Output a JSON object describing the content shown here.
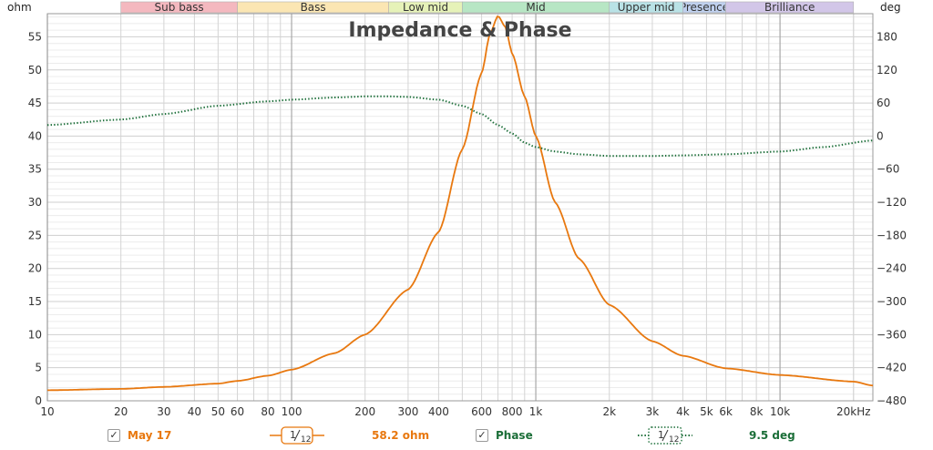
{
  "chart_data": {
    "type": "line",
    "title": "Impedance & Phase",
    "xlabel": "",
    "x_scale": "log",
    "xlim": [
      10,
      24000
    ],
    "x_ticks": [
      10,
      20,
      30,
      40,
      50,
      60,
      80,
      100,
      200,
      300,
      400,
      600,
      800,
      1000,
      2000,
      3000,
      4000,
      5000,
      6000,
      8000,
      10000,
      20000
    ],
    "x_tick_labels": [
      "10",
      "20",
      "30",
      "40",
      "50",
      "60",
      "80",
      "100",
      "200",
      "300",
      "400",
      "600",
      "800",
      "1k",
      "2k",
      "3k",
      "4k",
      "5k",
      "6k",
      "8k",
      "10k",
      "20kHz"
    ],
    "left_axis": {
      "label": "ohm",
      "ylim": [
        0,
        58.5
      ],
      "ticks": [
        0,
        5,
        10,
        15,
        20,
        25,
        30,
        35,
        40,
        45,
        50,
        55
      ],
      "tick_labels": [
        "0",
        "5",
        "10",
        "15",
        "20",
        "25",
        "30",
        "35",
        "40",
        "45",
        "50",
        "55"
      ]
    },
    "right_axis": {
      "label": "deg",
      "ylim": [
        -480,
        222
      ],
      "ticks": [
        180,
        120,
        60,
        0,
        -60,
        -120,
        -180,
        -240,
        -300,
        -360,
        -420,
        -480
      ],
      "tick_labels": [
        "180",
        "120",
        "60",
        "0",
        "-60",
        "-120",
        "-180",
        "-240",
        "-300",
        "-360",
        "-420",
        "-480"
      ]
    },
    "grid": true,
    "bands": [
      {
        "name": "Sub bass",
        "from": 20,
        "to": 60,
        "color": "#f4b8bf"
      },
      {
        "name": "Bass",
        "from": 60,
        "to": 250,
        "color": "#fbe6b3"
      },
      {
        "name": "Low mid",
        "from": 250,
        "to": 500,
        "color": "#e6f2b8"
      },
      {
        "name": "Mid",
        "from": 500,
        "to": 2000,
        "color": "#b7e6c4"
      },
      {
        "name": "Upper mid",
        "from": 2000,
        "to": 4000,
        "color": "#b9e2e6"
      },
      {
        "name": "Presence",
        "from": 4000,
        "to": 6000,
        "color": "#bfd0ee"
      },
      {
        "name": "Brilliance",
        "from": 6000,
        "to": 20000,
        "color": "#d2c6e8"
      }
    ],
    "series": [
      {
        "name": "May 17",
        "axis": "left",
        "color": "#e8780f",
        "style": "solid",
        "x": [
          10,
          20,
          30,
          50,
          60,
          80,
          100,
          150,
          200,
          300,
          400,
          500,
          600,
          650,
          700,
          750,
          800,
          900,
          1000,
          1200,
          1500,
          2000,
          3000,
          4000,
          6000,
          10000,
          20000,
          24000
        ],
        "values": [
          1.6,
          1.8,
          2.1,
          2.6,
          3.0,
          3.8,
          4.7,
          7.2,
          10.0,
          16.8,
          25.5,
          38.0,
          49.5,
          55.5,
          58.2,
          56.5,
          52.5,
          46.0,
          40.0,
          30.0,
          21.5,
          14.5,
          9.0,
          6.8,
          4.9,
          3.9,
          2.9,
          2.3
        ]
      },
      {
        "name": "Phase",
        "axis": "right",
        "color": "#1b6e38",
        "style": "dotted",
        "x": [
          10,
          20,
          30,
          50,
          80,
          100,
          150,
          200,
          250,
          300,
          400,
          500,
          600,
          700,
          800,
          900,
          1000,
          1200,
          1500,
          2000,
          3000,
          4000,
          6000,
          10000,
          15000,
          24000
        ],
        "values": [
          20,
          30,
          40,
          55,
          63,
          66,
          70,
          72,
          72,
          71,
          66,
          55,
          40,
          20,
          5,
          -12,
          -20,
          -28,
          -33,
          -36,
          -36,
          -35,
          -33,
          -28,
          -20,
          -8
        ]
      }
    ]
  },
  "legend": {
    "impedance": {
      "name": "May 17",
      "smoothing_num": "1",
      "smoothing_den": "12",
      "cursor_value": "58.2 ohm"
    },
    "phase": {
      "name": "Phase",
      "smoothing_num": "1",
      "smoothing_den": "12",
      "cursor_value": "9.5 deg"
    }
  },
  "colors": {
    "impedance": "#e8780f",
    "phase": "#1b6e38",
    "grid_minor": "#e5e5e5",
    "grid_major": "#b5b5b5",
    "checkmark": "✓"
  }
}
